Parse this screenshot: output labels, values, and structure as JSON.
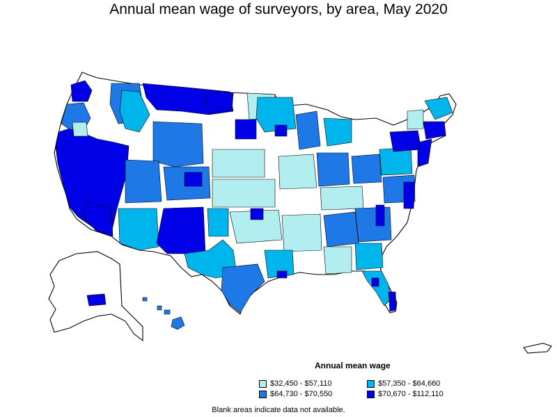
{
  "title": "Annual mean wage of surveyors, by area, May 2020",
  "legend": {
    "title": "Annual mean wage",
    "items": [
      {
        "label": "$32,450 - $57,110",
        "color": "#b2eef0"
      },
      {
        "label": "$57,350 - $64,660",
        "color": "#00b4ec"
      },
      {
        "label": "$64,730 - $70,550",
        "color": "#1e78e6"
      },
      {
        "label": "$70,670 - $112,110",
        "color": "#0000e6"
      }
    ]
  },
  "note": "Blank areas indicate data not available.",
  "colors": {
    "bin1": "#b2eef0",
    "bin2": "#00b4ec",
    "bin3": "#1e78e6",
    "bin4": "#0000e6",
    "blank": "#ffffff"
  }
}
